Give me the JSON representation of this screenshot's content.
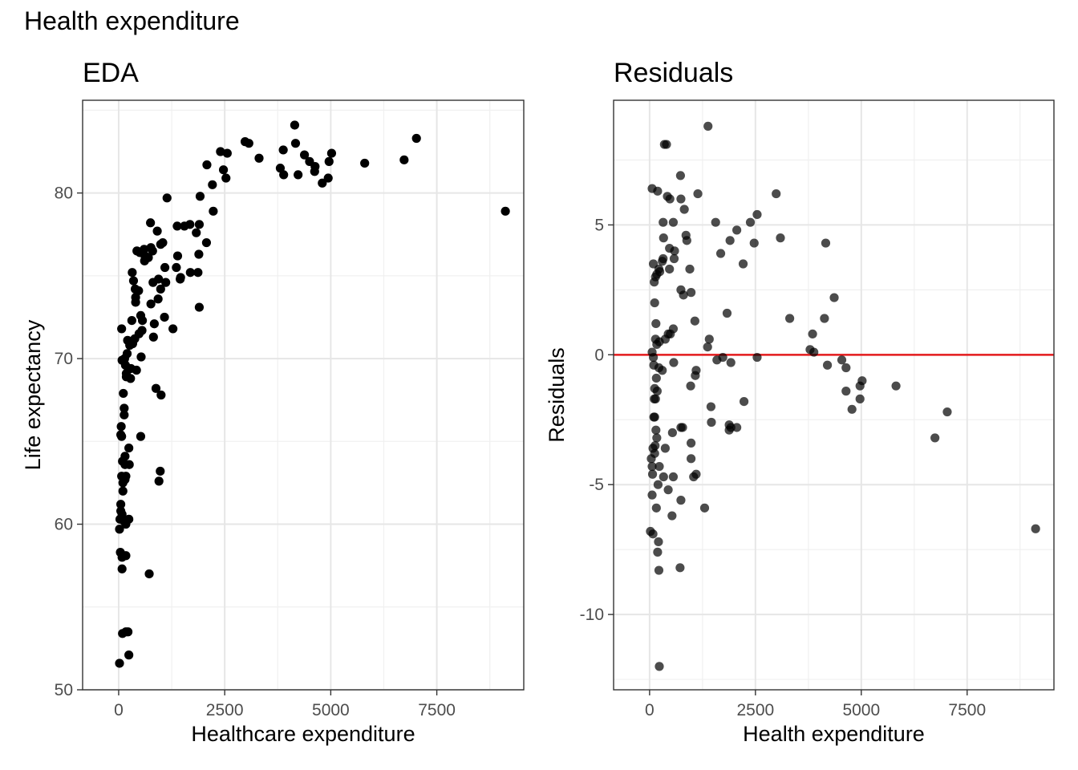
{
  "page": {
    "title": "Health expenditure"
  },
  "chart_data": [
    {
      "type": "scatter",
      "title": "EDA",
      "xlabel": "Healthcare expenditure",
      "ylabel": "Life expectancy",
      "xlim": [
        -850,
        9550
      ],
      "ylim": [
        50,
        85.6
      ],
      "xticks": [
        0,
        2500,
        5000,
        7500
      ],
      "yticks": [
        50,
        60,
        70,
        80
      ],
      "xtick_labels": [
        "0",
        "2500",
        "5000",
        "7500"
      ],
      "ytick_labels": [
        "50",
        "60",
        "70",
        "80"
      ],
      "grid": true,
      "point_color": "#000000",
      "point_opacity": 1,
      "points": [
        [
          9117,
          78.9
        ],
        [
          7020,
          83.3
        ],
        [
          6730,
          82.0
        ],
        [
          5800,
          81.8
        ],
        [
          5020,
          82.4
        ],
        [
          4960,
          81.9
        ],
        [
          4940,
          80.9
        ],
        [
          4800,
          80.6
        ],
        [
          4630,
          81.6
        ],
        [
          4620,
          81.3
        ],
        [
          4500,
          81.9
        ],
        [
          4380,
          82.3
        ],
        [
          4230,
          81.1
        ],
        [
          4170,
          83.0
        ],
        [
          4150,
          84.1
        ],
        [
          3890,
          81.1
        ],
        [
          3880,
          82.6
        ],
        [
          3810,
          81.5
        ],
        [
          3310,
          82.1
        ],
        [
          3070,
          83.0
        ],
        [
          2980,
          83.1
        ],
        [
          2560,
          82.4
        ],
        [
          2530,
          80.9
        ],
        [
          2470,
          81.4
        ],
        [
          2400,
          82.5
        ],
        [
          2210,
          80.5
        ],
        [
          2230,
          78.9
        ],
        [
          2080,
          81.7
        ],
        [
          2070,
          77.0
        ],
        [
          1920,
          79.8
        ],
        [
          1900,
          78.1
        ],
        [
          1890,
          76.3
        ],
        [
          1900,
          73.1
        ],
        [
          1870,
          75.2
        ],
        [
          1830,
          77.6
        ],
        [
          1690,
          75.2
        ],
        [
          1680,
          78.1
        ],
        [
          1550,
          78.0
        ],
        [
          1460,
          74.9
        ],
        [
          1450,
          74.8
        ],
        [
          1390,
          76.2
        ],
        [
          1380,
          78.0
        ],
        [
          1360,
          75.5
        ],
        [
          1280,
          71.8
        ],
        [
          1140,
          79.7
        ],
        [
          1110,
          74.6
        ],
        [
          1090,
          75.5
        ],
        [
          1080,
          72.5
        ],
        [
          1040,
          77.0
        ],
        [
          1000,
          67.8
        ],
        [
          990,
          76.9
        ],
        [
          990,
          74.2
        ],
        [
          980,
          63.2
        ],
        [
          950,
          62.6
        ],
        [
          940,
          74.8
        ],
        [
          930,
          73.6
        ],
        [
          910,
          77.7
        ],
        [
          880,
          68.2
        ],
        [
          840,
          72.1
        ],
        [
          820,
          71.3
        ],
        [
          800,
          76.5
        ],
        [
          810,
          74.6
        ],
        [
          760,
          73.3
        ],
        [
          760,
          76.7
        ],
        [
          750,
          78.2
        ],
        [
          720,
          57.0
        ],
        [
          700,
          76.1
        ],
        [
          620,
          76.2
        ],
        [
          610,
          75.9
        ],
        [
          600,
          76.6
        ],
        [
          560,
          72.3
        ],
        [
          550,
          71.7
        ],
        [
          530,
          70.1
        ],
        [
          520,
          65.3
        ],
        [
          520,
          72.6
        ],
        [
          500,
          76.4
        ],
        [
          480,
          71.5
        ],
        [
          470,
          74.1
        ],
        [
          430,
          76.5
        ],
        [
          420,
          69.3
        ],
        [
          400,
          73.7
        ],
        [
          400,
          73.4
        ],
        [
          390,
          74.2
        ],
        [
          380,
          71.2
        ],
        [
          350,
          74.7
        ],
        [
          330,
          70.9
        ],
        [
          320,
          75.2
        ],
        [
          310,
          72.3
        ],
        [
          290,
          69.4
        ],
        [
          280,
          68.8
        ],
        [
          260,
          70.8
        ],
        [
          250,
          63.6
        ],
        [
          240,
          64.6
        ],
        [
          240,
          60.3
        ],
        [
          240,
          52.1
        ],
        [
          220,
          53.5
        ],
        [
          210,
          71.1
        ],
        [
          200,
          70.3
        ],
        [
          180,
          69.1
        ],
        [
          180,
          68.9
        ],
        [
          170,
          60.0
        ],
        [
          170,
          62.9
        ],
        [
          170,
          58.1
        ],
        [
          170,
          53.5
        ],
        [
          160,
          69.6
        ],
        [
          150,
          63.6
        ],
        [
          150,
          62.7
        ],
        [
          150,
          64.1
        ],
        [
          140,
          70.0
        ],
        [
          130,
          67.0
        ],
        [
          130,
          66.6
        ],
        [
          120,
          60.2
        ],
        [
          110,
          67.9
        ],
        [
          100,
          62.0
        ],
        [
          100,
          62.5
        ],
        [
          90,
          63.8
        ],
        [
          80,
          69.9
        ],
        [
          80,
          60.6
        ],
        [
          80,
          58.0
        ],
        [
          80,
          57.3
        ],
        [
          70,
          71.8
        ],
        [
          70,
          65.3
        ],
        [
          70,
          62.9
        ],
        [
          60,
          65.9
        ],
        [
          50,
          65.4
        ],
        [
          50,
          60.8
        ],
        [
          50,
          61.2
        ],
        [
          40,
          58.3
        ],
        [
          30,
          60.3
        ],
        [
          20,
          59.7
        ],
        [
          20,
          51.6
        ],
        [
          90,
          53.4
        ]
      ]
    },
    {
      "type": "scatter",
      "title": "Residuals",
      "xlabel": "Health expenditure",
      "ylabel": "Residuals",
      "xlim": [
        -850,
        9550
      ],
      "ylim": [
        -12.9,
        9.8
      ],
      "xticks": [
        0,
        2500,
        5000,
        7500
      ],
      "yticks": [
        -10,
        -5,
        0,
        5
      ],
      "xtick_labels": [
        "0",
        "2500",
        "5000",
        "7500"
      ],
      "ytick_labels": [
        "-10",
        "-5",
        "0",
        "5"
      ],
      "grid": true,
      "point_color": "#000000",
      "point_opacity": 0.7,
      "reference_line": {
        "y": 0,
        "color": "#e31a1c"
      },
      "points": [
        [
          1380,
          8.8
        ],
        [
          350,
          8.1
        ],
        [
          400,
          8.1
        ],
        [
          60,
          6.4
        ],
        [
          190,
          6.3
        ],
        [
          730,
          6.9
        ],
        [
          420,
          6.1
        ],
        [
          480,
          6.0
        ],
        [
          740,
          6.0
        ],
        [
          1140,
          6.2
        ],
        [
          2990,
          6.2
        ],
        [
          820,
          5.6
        ],
        [
          320,
          5.1
        ],
        [
          560,
          5.1
        ],
        [
          1560,
          5.1
        ],
        [
          2380,
          5.1
        ],
        [
          2540,
          5.4
        ],
        [
          2060,
          4.8
        ],
        [
          3090,
          4.5
        ],
        [
          330,
          4.5
        ],
        [
          860,
          4.6
        ],
        [
          880,
          4.4
        ],
        [
          1900,
          4.4
        ],
        [
          2470,
          4.3
        ],
        [
          4160,
          4.3
        ],
        [
          470,
          4.1
        ],
        [
          590,
          4.0
        ],
        [
          1680,
          3.9
        ],
        [
          580,
          3.7
        ],
        [
          320,
          3.7
        ],
        [
          300,
          3.6
        ],
        [
          90,
          3.5
        ],
        [
          170,
          3.1
        ],
        [
          220,
          3.3
        ],
        [
          470,
          3.3
        ],
        [
          950,
          3.3
        ],
        [
          2210,
          3.5
        ],
        [
          110,
          2.8
        ],
        [
          140,
          3.0
        ],
        [
          240,
          3.2
        ],
        [
          740,
          2.5
        ],
        [
          800,
          2.3
        ],
        [
          980,
          2.4
        ],
        [
          4360,
          2.2
        ],
        [
          120,
          2.0
        ],
        [
          1830,
          1.6
        ],
        [
          3310,
          1.4
        ],
        [
          4130,
          1.4
        ],
        [
          1070,
          1.3
        ],
        [
          150,
          1.2
        ],
        [
          560,
          1.0
        ],
        [
          440,
          0.8
        ],
        [
          490,
          0.8
        ],
        [
          3850,
          0.8
        ],
        [
          140,
          0.6
        ],
        [
          370,
          0.6
        ],
        [
          1410,
          0.6
        ],
        [
          170,
          0.4
        ],
        [
          230,
          0.5
        ],
        [
          1370,
          0.3
        ],
        [
          3790,
          0.2
        ],
        [
          3880,
          0.1
        ],
        [
          60,
          0.1
        ],
        [
          90,
          -0.1
        ],
        [
          1730,
          -0.1
        ],
        [
          2540,
          -0.1
        ],
        [
          4540,
          -0.2
        ],
        [
          1590,
          -0.2
        ],
        [
          1920,
          -0.3
        ],
        [
          570,
          -0.3
        ],
        [
          4200,
          -0.4
        ],
        [
          4640,
          -0.5
        ],
        [
          100,
          -0.4
        ],
        [
          220,
          -0.5
        ],
        [
          300,
          -0.6
        ],
        [
          1100,
          -0.6
        ],
        [
          1080,
          -0.8
        ],
        [
          160,
          -0.9
        ],
        [
          5020,
          -1.0
        ],
        [
          4970,
          -1.2
        ],
        [
          5820,
          -1.2
        ],
        [
          970,
          -1.2
        ],
        [
          120,
          -1.3
        ],
        [
          180,
          -1.4
        ],
        [
          4640,
          -1.4
        ],
        [
          140,
          -1.7
        ],
        [
          110,
          -1.7
        ],
        [
          4970,
          -1.7
        ],
        [
          2230,
          -1.8
        ],
        [
          1450,
          -2.0
        ],
        [
          4780,
          -2.1
        ],
        [
          7030,
          -2.2
        ],
        [
          120,
          -2.4
        ],
        [
          100,
          -2.4
        ],
        [
          1460,
          -2.6
        ],
        [
          1880,
          -2.7
        ],
        [
          740,
          -2.8
        ],
        [
          780,
          -2.8
        ],
        [
          1880,
          -2.9
        ],
        [
          1920,
          -2.8
        ],
        [
          2060,
          -2.8
        ],
        [
          150,
          -2.9
        ],
        [
          170,
          -3.2
        ],
        [
          540,
          -3.0
        ],
        [
          6740,
          -3.2
        ],
        [
          980,
          -3.4
        ],
        [
          370,
          -3.6
        ],
        [
          130,
          -3.5
        ],
        [
          80,
          -3.6
        ],
        [
          120,
          -3.8
        ],
        [
          40,
          -4.0
        ],
        [
          980,
          -4.0
        ],
        [
          60,
          -4.3
        ],
        [
          230,
          -4.3
        ],
        [
          70,
          -4.6
        ],
        [
          1100,
          -4.6
        ],
        [
          1040,
          -4.7
        ],
        [
          330,
          -4.7
        ],
        [
          560,
          -4.7
        ],
        [
          200,
          -5.0
        ],
        [
          440,
          -5.2
        ],
        [
          60,
          -5.4
        ],
        [
          740,
          -5.6
        ],
        [
          1300,
          -5.9
        ],
        [
          160,
          -5.9
        ],
        [
          530,
          -6.2
        ],
        [
          20,
          -6.8
        ],
        [
          80,
          -6.9
        ],
        [
          9117,
          -6.7
        ],
        [
          210,
          -7.2
        ],
        [
          190,
          -7.6
        ],
        [
          720,
          -8.2
        ],
        [
          220,
          -8.3
        ],
        [
          230,
          -12.0
        ]
      ]
    }
  ]
}
